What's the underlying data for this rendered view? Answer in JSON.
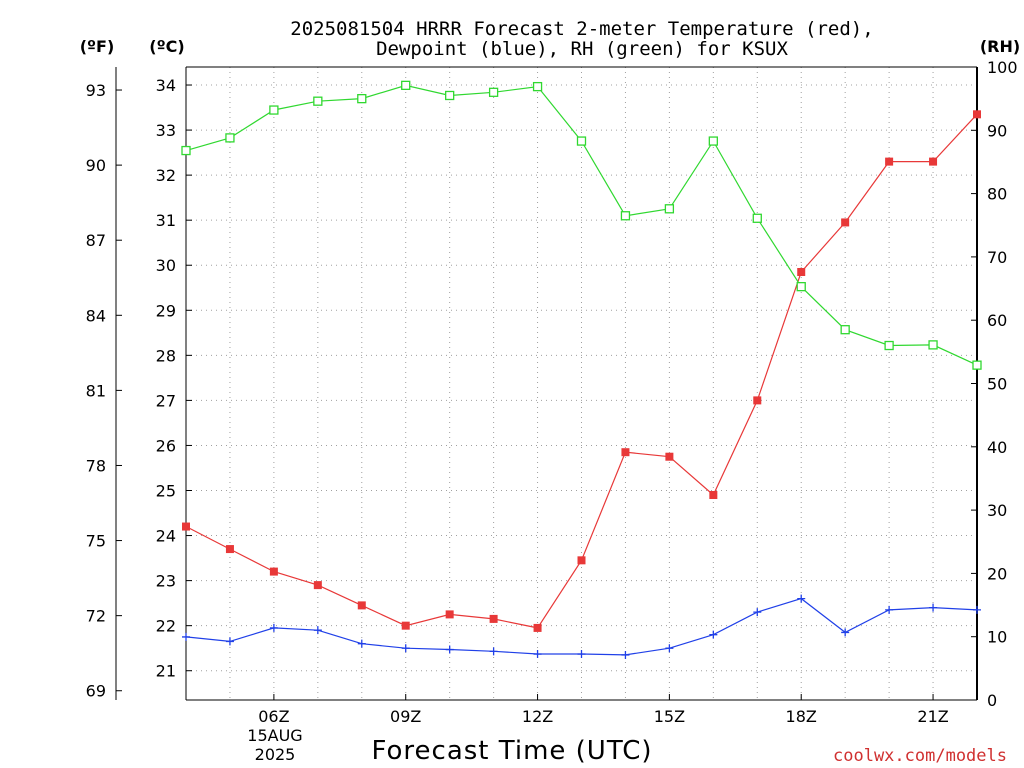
{
  "chart_data": {
    "type": "line",
    "title_line1": "2025081504 HRRR Forecast 2-meter Temperature (red),",
    "title_line2": "Dewpoint (blue), RH (green) for KSUX",
    "xlabel": "Forecast Time (UTC)",
    "date_label_line1": "15AUG",
    "date_label_line2": "2025",
    "credit": "coolwx.com/models",
    "units": {
      "fahrenheit": "(ºF)",
      "celsius": "(ºC)",
      "rh": "(RH)"
    },
    "x": [
      4,
      5,
      6,
      7,
      8,
      9,
      10,
      11,
      12,
      13,
      14,
      15,
      16,
      17,
      18,
      19,
      20,
      21,
      22
    ],
    "x_unit": "hour UTC, 15AUG2025",
    "xlim": [
      4,
      22
    ],
    "x_ticks": [
      {
        "x": 6,
        "label": "06Z"
      },
      {
        "x": 9,
        "label": "09Z"
      },
      {
        "x": 12,
        "label": "12Z"
      },
      {
        "x": 15,
        "label": "15Z"
      },
      {
        "x": 18,
        "label": "18Z"
      },
      {
        "x": 21,
        "label": "21Z"
      }
    ],
    "y_celsius_ticks": [
      "21",
      "22",
      "23",
      "24",
      "25",
      "26",
      "27",
      "28",
      "29",
      "30",
      "31",
      "32",
      "33",
      "34"
    ],
    "ylim_celsius": [
      20.35,
      34.4
    ],
    "y_fahrenheit_ticks": [
      "69",
      "72",
      "75",
      "78",
      "81",
      "84",
      "87",
      "90",
      "93"
    ],
    "y_rh_ticks": [
      "0",
      "10",
      "20",
      "30",
      "40",
      "50",
      "60",
      "70",
      "80",
      "90",
      "100"
    ],
    "ylim_rh": [
      0,
      100
    ],
    "grid": true,
    "series": [
      {
        "name": "Temperature",
        "axis": "celsius",
        "color": "#e83838",
        "marker": "filled-square",
        "values": [
          24.2,
          23.7,
          23.2,
          22.9,
          22.45,
          22.0,
          22.25,
          22.15,
          21.95,
          23.45,
          25.85,
          25.75,
          24.9,
          27.0,
          29.85,
          30.95,
          32.3,
          32.3,
          33.35
        ]
      },
      {
        "name": "Dewpoint",
        "axis": "celsius",
        "color": "#2040e8",
        "marker": "plus",
        "values": [
          21.75,
          21.65,
          21.95,
          21.9,
          21.6,
          21.5,
          21.47,
          21.43,
          21.37,
          21.37,
          21.35,
          21.5,
          21.8,
          22.3,
          22.6,
          21.85,
          22.35,
          22.4,
          22.35
        ]
      },
      {
        "name": "RH",
        "axis": "rh",
        "color": "#30d830",
        "marker": "open-square",
        "values": [
          86.8,
          88.8,
          93.2,
          94.6,
          95.0,
          97.1,
          95.5,
          96.0,
          96.9,
          88.3,
          76.5,
          77.6,
          88.3,
          76.1,
          65.3,
          58.5,
          56.0,
          56.1,
          52.9
        ]
      }
    ]
  }
}
